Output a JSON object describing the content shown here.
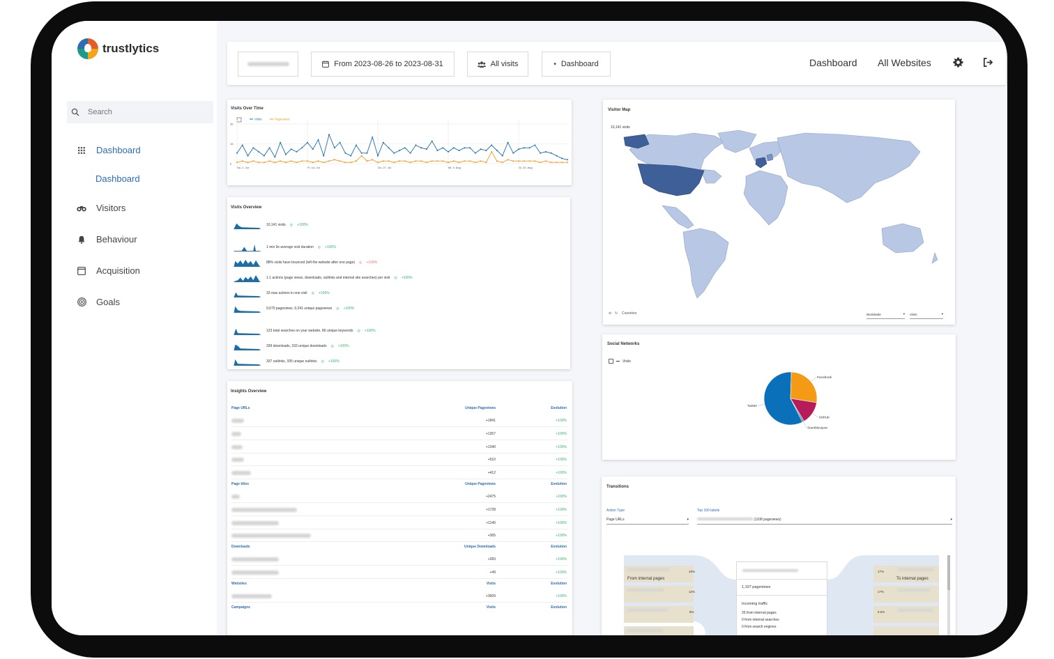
{
  "app": {
    "name": "trustlytics"
  },
  "sidebar": {
    "search_placeholder": "Search",
    "items": [
      {
        "label": "Dashboard",
        "icon": "grid-icon",
        "active": true
      },
      {
        "label": "Dashboard",
        "icon": "",
        "active": true
      },
      {
        "label": "Visitors",
        "icon": "binoculars-icon"
      },
      {
        "label": "Behaviour",
        "icon": "bell-icon"
      },
      {
        "label": "Acquisition",
        "icon": "browser-window-icon"
      },
      {
        "label": "Goals",
        "icon": "target-icon"
      }
    ]
  },
  "topbar": {
    "date_range": "From 2023-08-26 to 2023-08-31",
    "segment": "All visits",
    "dashboard_select": "Dashboard",
    "link_dashboard": "Dashboard",
    "link_all_websites": "All Websites"
  },
  "visits_over_time": {
    "title": "Visits Over Time",
    "legend": [
      "Visits",
      "Pageviews"
    ],
    "y_ticks": [
      "30",
      "15",
      "0"
    ],
    "x_ticks": [
      "Sa, 1. Jul",
      "Fr, 14. Jul",
      "Do, 27. Jul",
      "Mi, 9. Aug",
      "Di, 22. Aug"
    ]
  },
  "chart_data": [
    {
      "type": "line",
      "title": "Visits Over Time",
      "ylim": [
        0,
        30
      ],
      "x_ticks": [
        "Sa, 1. Jul",
        "Fr, 14. Jul",
        "Do, 27. Jul",
        "Mi, 9. Aug",
        "Di, 22. Aug"
      ],
      "series": [
        {
          "name": "Visits",
          "values": [
            8,
            14,
            6,
            12,
            9,
            6,
            12,
            5,
            16,
            7,
            11,
            9,
            12,
            16,
            11,
            18,
            6,
            22,
            12,
            16,
            8,
            6,
            14,
            8,
            8,
            20,
            6,
            16,
            12,
            8,
            10,
            12,
            8,
            14,
            12,
            11,
            17,
            10,
            12,
            9,
            12,
            10,
            12,
            12,
            8,
            11,
            10,
            14,
            10,
            6,
            16,
            8,
            11,
            12,
            12,
            14,
            8,
            9,
            8,
            6,
            4,
            3
          ],
          "color": "#1b6fb3"
        },
        {
          "name": "Pageviews",
          "values": [
            1,
            2,
            1,
            2,
            1,
            1,
            2,
            1,
            2,
            1,
            2,
            1,
            2,
            2,
            1,
            2,
            1,
            2,
            3,
            2,
            1,
            1,
            2,
            6,
            2,
            3,
            1,
            2,
            2,
            1,
            2,
            2,
            1,
            2,
            2,
            1,
            2,
            2,
            2,
            1,
            2,
            1,
            2,
            2,
            1,
            2,
            1,
            9,
            2,
            1,
            3,
            2,
            2,
            2,
            2,
            2,
            1,
            2,
            1,
            1,
            1,
            1
          ],
          "color": "#f39a1e"
        }
      ]
    },
    {
      "type": "pie",
      "title": "Social Networks",
      "series": [
        {
          "name": "Visits"
        }
      ],
      "categories": [
        "Twitter",
        "Facebook",
        "GitHub",
        "StumbleUpon"
      ],
      "values": [
        58,
        27,
        14,
        1
      ],
      "colors": [
        "#0a70b9",
        "#f59a14",
        "#b71c5a",
        "#5e7fa0"
      ]
    }
  ],
  "visits_overview": {
    "title": "Visits Overview",
    "rows": [
      {
        "text": "10,141 visits",
        "evo": "+100%"
      },
      {
        "text": "1 min 9s average visit duration",
        "evo": "+100%"
      },
      {
        "text": "88% visits have bounced (left the website after one page)",
        "evo": "+100%",
        "neg": true
      },
      {
        "text": "1.1 actions (page views, downloads, outlinks and internal site searches) per visit",
        "evo": "+100%"
      },
      {
        "text": "33 max actions in one visit",
        "evo": "+100%"
      },
      {
        "text": "9,670 pageviews, 9,241 unique pageviews",
        "evo": "+100%"
      },
      {
        "text": "123 total searches on your website, 86 unique keywords",
        "evo": "+100%"
      },
      {
        "text": "339 downloads, 333 unique downloads",
        "evo": "+100%"
      },
      {
        "text": "337 outlinks, 335 unique outlinks",
        "evo": "+100%"
      }
    ]
  },
  "insights": {
    "title": "Insights Overview",
    "sections": [
      {
        "col1": "Page URLs",
        "col2": "Unique Pageviews",
        "col3": "Evolution",
        "rows": [
          [
            "+1841",
            "+100%"
          ],
          [
            "+1357",
            "+100%"
          ],
          [
            "+1340",
            "+100%"
          ],
          [
            "+510",
            "+100%"
          ],
          [
            "+412",
            "+100%"
          ]
        ]
      },
      {
        "col1": "Page titles",
        "col2": "Unique Pageviews",
        "col3": "Evolution",
        "rows": [
          [
            "+2475",
            "+100%"
          ],
          [
            "+1728",
            "+100%"
          ],
          [
            "+1140",
            "+100%"
          ],
          [
            "+365",
            "+100%"
          ]
        ]
      },
      {
        "col1": "Downloads",
        "col2": "Unique Downloads",
        "col3": "Evolution",
        "rows": [
          [
            "+283",
            "+100%"
          ],
          [
            "+49",
            "+100%"
          ]
        ]
      },
      {
        "col1": "Websites",
        "col2": "Visits",
        "col3": "Evolution",
        "rows": [
          [
            "+3609",
            "+100%"
          ]
        ]
      },
      {
        "col1": "Campaigns",
        "col2": "Visits",
        "col3": "Evolution",
        "rows": []
      }
    ]
  },
  "visitor_map": {
    "title": "Visitor Map",
    "total": "10,141 visits",
    "footer_label": "Countries",
    "region_select": "Worldwide",
    "metric_select": "Visits"
  },
  "social": {
    "title": "Social Networks",
    "legend": "Visits",
    "labels": [
      "Facebook",
      "GitHub",
      "StumbleUpon",
      "Twitter"
    ]
  },
  "transitions": {
    "title": "Transitions",
    "action_type_label": "Action Type",
    "action_type_value": "Page URLs",
    "top_labels_label": "Top 100 labels",
    "top_labels_value": "(1108 pageviews)",
    "from_label": "From internal pages",
    "to_label": "To internal pages",
    "left_pct": [
      "16%",
      "12%",
      "8%"
    ],
    "right_pct": [
      "17%",
      "17%",
      "5.6%"
    ],
    "center_pageviews": "1,107 pageviews",
    "incoming_title": "Incoming traffic",
    "incoming_lines": [
      "25 from internal pages",
      "0 from internal searches",
      "0 from search engines"
    ]
  }
}
